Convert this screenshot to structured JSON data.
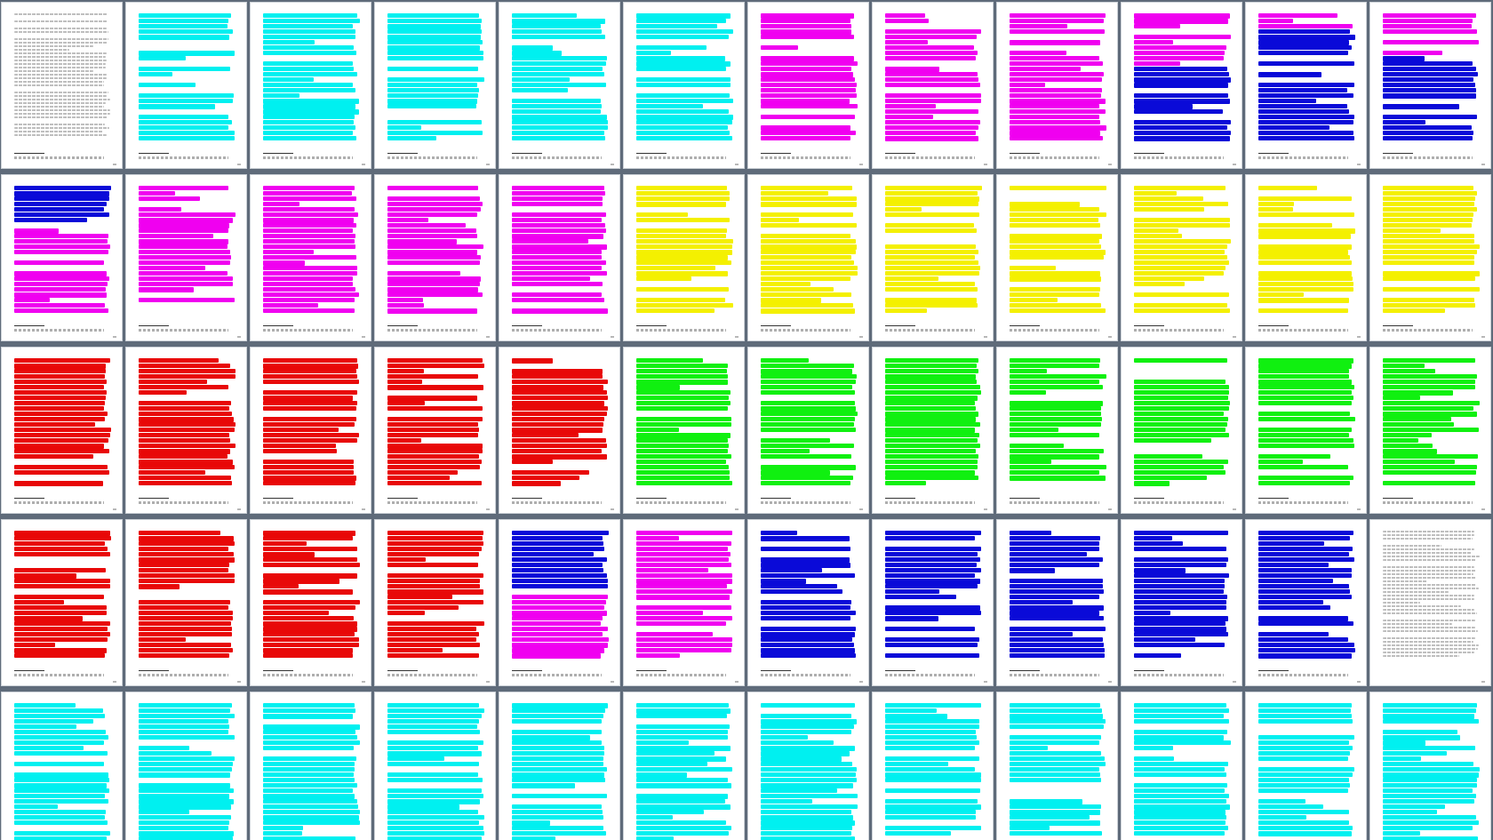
{
  "colors": {
    "cyan": "#00f0f0",
    "magenta": "#f000f0",
    "blue": "#0a0ad8",
    "yellow": "#f4f000",
    "red": "#e80808",
    "green": "#10f010",
    "text": "#8a8a8a",
    "viewer_bg": "#5f6b7a"
  },
  "rows": [
    [
      "text",
      "cyan",
      "cyan",
      "cyan",
      "cyan",
      "cyan",
      "magenta",
      "magenta",
      "magenta",
      "magenta",
      "blue",
      "magenta"
    ],
    [
      "blue",
      "magenta",
      "magenta",
      "magenta",
      "magenta",
      "yellow",
      "yellow",
      "yellow",
      "yellow",
      "yellow",
      "yellow",
      "yellow"
    ],
    [
      "red",
      "red",
      "red",
      "red",
      "red",
      "green",
      "green",
      "green",
      "green",
      "green",
      "green",
      "green"
    ],
    [
      "red",
      "red",
      "red",
      "red",
      "blue",
      "magenta",
      "blue",
      "blue",
      "blue",
      "blue",
      "blue",
      "text"
    ],
    [
      "cyan",
      "cyan",
      "cyan",
      "cyan",
      "cyan",
      "cyan",
      "cyan",
      "cyan",
      "cyan",
      "cyan",
      "cyan",
      "cyan"
    ]
  ],
  "secondary": {
    "0-10": "blue",
    "0-11": "blue",
    "0-9": "blue",
    "1-0": "magenta",
    "3-4": "magenta"
  }
}
